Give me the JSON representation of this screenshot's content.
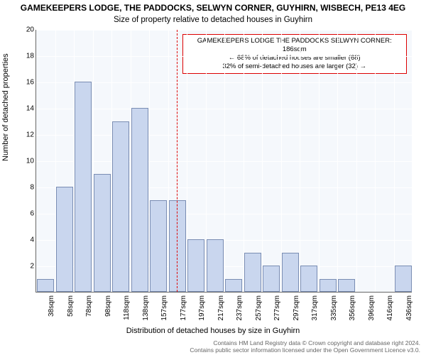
{
  "chart": {
    "type": "bar",
    "title_main": "GAMEKEEPERS LODGE, THE PADDOCKS, SELWYN CORNER, GUYHIRN, WISBECH, PE13 4EG",
    "title_sub": "Size of property relative to detached houses in Guyhirn",
    "ylabel": "Number of detached properties",
    "xlabel": "Distribution of detached houses by size in Guyhirn",
    "title_fontsize": 12,
    "sub_fontsize": 11.5,
    "label_fontsize": 11,
    "tick_fontsize": 10,
    "background_color": "#f5f8fc",
    "grid_color": "#ffffff",
    "axis_color": "#666666",
    "bar_fill": "#c9d6ee",
    "bar_border": "#7a8db3",
    "highlight_color": "#dd0000",
    "categories": [
      "38sqm",
      "58sqm",
      "78sqm",
      "98sqm",
      "118sqm",
      "138sqm",
      "157sqm",
      "177sqm",
      "197sqm",
      "217sqm",
      "237sqm",
      "257sqm",
      "277sqm",
      "297sqm",
      "317sqm",
      "335sqm",
      "356sqm",
      "396sqm",
      "416sqm",
      "436sqm"
    ],
    "values": [
      1,
      8,
      16,
      9,
      13,
      14,
      7,
      7,
      4,
      4,
      1,
      3,
      2,
      3,
      2,
      1,
      1,
      0,
      0,
      2
    ],
    "y_ticks": [
      2,
      4,
      6,
      8,
      10,
      12,
      14,
      16,
      18,
      20
    ],
    "ylim": [
      0,
      20
    ],
    "bar_width_ratio": 0.92,
    "highlight_index": 7,
    "annotation": {
      "line1": "GAMEKEEPERS LODGE THE PADDOCKS SELWYN CORNER: 186sqm",
      "line2": "← 68% of detached houses are smaller (68)",
      "line3": "32% of semi-detached houses are larger (32) →"
    },
    "footer_line1": "Contains HM Land Registry data © Crown copyright and database right 2024.",
    "footer_line2": "Contains public sector information licensed under the Open Government Licence v3.0."
  }
}
